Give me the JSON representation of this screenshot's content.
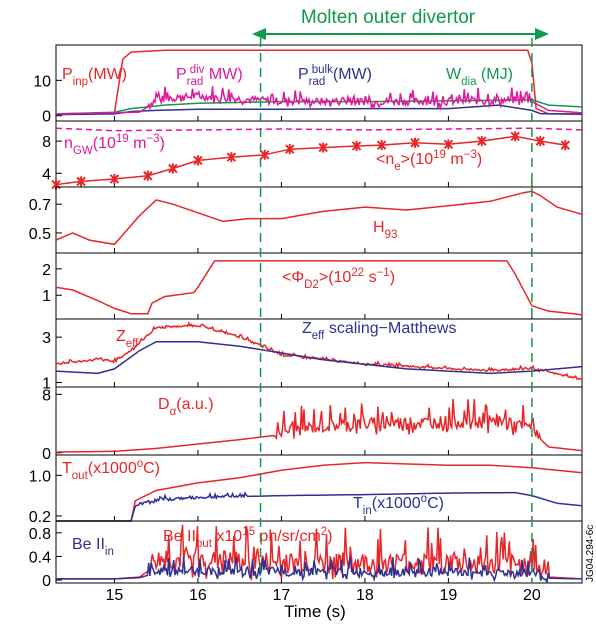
{
  "figure": {
    "banner": "Molten outer divertor",
    "xlabel": "Time (s)",
    "code": "JG04.294-6c",
    "marker_times": [
      16.75,
      20.0
    ],
    "colors": {
      "red": "#e8262a",
      "blue": "#2e3192",
      "green": "#11994c",
      "magenta": "#e0189a",
      "axis": "#000000"
    }
  },
  "chart_data": [
    {
      "type": "line",
      "xlim": [
        14.3,
        20.6
      ],
      "ylim": [
        -1.5,
        20
      ],
      "yticks": [
        "10",
        "0"
      ],
      "ytick_values": [
        10,
        0
      ],
      "xticks": [
        15,
        16,
        17,
        18,
        19,
        20
      ],
      "labels": [
        {
          "text": "P",
          "sub": "inp",
          "tail": "(MW)",
          "color": "red"
        },
        {
          "text": "P",
          "sub": "rad",
          "sup": "div",
          "tail": " MW)",
          "color": "magenta"
        },
        {
          "text": "P",
          "sub": "rad",
          "sup": "bulk",
          "tail": "(MW)",
          "color": "blue"
        },
        {
          "text": "W",
          "sub": "dia",
          "tail": " (MJ)",
          "color": "green"
        }
      ],
      "series": [
        {
          "color": "red",
          "x": [
            14.3,
            15.0,
            15.1,
            15.2,
            15.6,
            16.5,
            17.0,
            18.0,
            19.0,
            19.95,
            20.0,
            20.05,
            20.2,
            20.6
          ],
          "y": [
            0.5,
            0.8,
            16,
            18,
            18.5,
            18.5,
            18.5,
            18.5,
            18.5,
            18.5,
            15,
            2,
            0.5,
            0.5
          ]
        },
        {
          "color": "green",
          "x": [
            14.3,
            15.0,
            15.2,
            15.6,
            16.0,
            17.0,
            18.0,
            19.0,
            20.0,
            20.2,
            20.6
          ],
          "y": [
            0.5,
            1,
            2,
            3,
            3.5,
            4,
            4,
            4.2,
            4.5,
            3,
            2.5
          ]
        },
        {
          "color": "blue",
          "x": [
            14.3,
            15.0,
            15.2,
            15.5,
            16.0,
            17.0,
            18.0,
            19.0,
            19.6,
            20.0,
            20.1,
            20.6
          ],
          "y": [
            0.3,
            0.5,
            1.2,
            1.5,
            1.8,
            1.8,
            2,
            2,
            3,
            1.5,
            0.6,
            0.4
          ]
        },
        {
          "color": "magenta",
          "x": [
            14.3,
            15.3,
            15.5,
            16.0,
            17.0,
            18.0,
            19.0,
            20.0,
            20.2,
            20.6
          ],
          "y": [
            0.5,
            1,
            4,
            5,
            3.5,
            3.5,
            3.5,
            4,
            1.5,
            0.8
          ],
          "noise": 3.5,
          "noise_from": 15.4,
          "noise_to": 20.0
        }
      ]
    },
    {
      "type": "line",
      "xlim": [
        14.3,
        20.6
      ],
      "ylim": [
        2.3,
        10.5
      ],
      "yticks": [
        "8",
        "4"
      ],
      "ytick_values": [
        8,
        4
      ],
      "xticks": [
        15,
        16,
        17,
        18,
        19,
        20
      ],
      "labels": [
        {
          "text": "n",
          "sub": "GW",
          "tail": "(10",
          "sup2": "19",
          "tail2": " m",
          "sup3": "−3",
          "tail3": ")",
          "color": "magenta"
        },
        {
          "text": "<n",
          "sub": "e",
          "tail": ">(10",
          "sup2": "19",
          "tail2": " m",
          "sup3": "−3",
          "tail3": ")",
          "color": "red"
        }
      ],
      "series": [
        {
          "color": "magenta",
          "dashed": true,
          "x": [
            14.3,
            15.0,
            16.0,
            17.0,
            18.0,
            19.0,
            20.0,
            20.6
          ],
          "y": [
            9.6,
            9.3,
            9.4,
            9.5,
            9.4,
            9.5,
            9.6,
            9.4
          ]
        },
        {
          "color": "red",
          "markers": true,
          "x": [
            14.3,
            14.6,
            15.0,
            15.4,
            15.7,
            16.0,
            16.4,
            16.8,
            17.1,
            17.5,
            17.9,
            18.2,
            18.6,
            19.0,
            19.4,
            19.8,
            20.1,
            20.4
          ],
          "y": [
            2.6,
            3.0,
            3.3,
            3.7,
            4.6,
            5.6,
            6.0,
            6.3,
            7.0,
            7.2,
            7.4,
            7.5,
            7.8,
            7.6,
            8.0,
            8.6,
            8.0,
            7.5
          ]
        }
      ]
    },
    {
      "type": "line",
      "xlim": [
        14.3,
        20.6
      ],
      "ylim": [
        0.36,
        0.82
      ],
      "yticks": [
        "0.7",
        "0.5"
      ],
      "ytick_values": [
        0.7,
        0.5
      ],
      "xticks": [
        15,
        16,
        17,
        18,
        19,
        20
      ],
      "labels": [
        {
          "text": "H",
          "sub": "93",
          "color": "red"
        }
      ],
      "series": [
        {
          "color": "red",
          "x": [
            14.3,
            14.5,
            14.7,
            15.0,
            15.3,
            15.5,
            15.7,
            16.0,
            16.3,
            16.6,
            17.0,
            17.5,
            18.0,
            18.5,
            19.0,
            19.5,
            19.9,
            20.0,
            20.1,
            20.3,
            20.6
          ],
          "y": [
            0.45,
            0.5,
            0.45,
            0.42,
            0.62,
            0.73,
            0.7,
            0.64,
            0.58,
            0.6,
            0.6,
            0.65,
            0.68,
            0.66,
            0.69,
            0.72,
            0.78,
            0.79,
            0.76,
            0.68,
            0.63
          ]
        }
      ]
    },
    {
      "type": "line",
      "xlim": [
        14.3,
        20.6
      ],
      "ylim": [
        0.1,
        2.6
      ],
      "yticks": [
        "2",
        "1"
      ],
      "ytick_values": [
        2,
        1
      ],
      "xticks": [
        15,
        16,
        17,
        18,
        19,
        20
      ],
      "labels": [
        {
          "text": "<Φ",
          "sub": "D2",
          "tail": ">(10",
          "sup2": "22",
          "tail2": " s",
          "sup3": "−1",
          "tail3": ")",
          "color": "red"
        }
      ],
      "series": [
        {
          "color": "red",
          "x": [
            14.3,
            14.5,
            14.8,
            15.0,
            15.2,
            15.4,
            15.45,
            15.6,
            15.95,
            16.0,
            16.2,
            17.0,
            18.0,
            19.0,
            19.7,
            19.8,
            20.0,
            20.2,
            20.5,
            20.6
          ],
          "y": [
            1.3,
            1.2,
            0.8,
            0.5,
            0.3,
            0.3,
            0.7,
            0.95,
            1.1,
            1.3,
            2.3,
            2.3,
            2.3,
            2.3,
            2.3,
            1.8,
            0.6,
            0.4,
            0.3,
            0.25
          ]
        }
      ]
    },
    {
      "type": "line",
      "xlim": [
        14.3,
        20.6
      ],
      "ylim": [
        0.8,
        3.8
      ],
      "yticks": [
        "3",
        "1"
      ],
      "ytick_values": [
        3,
        1
      ],
      "xticks": [
        15,
        16,
        17,
        18,
        19,
        20
      ],
      "labels": [
        {
          "text": "Z",
          "sub": "eff",
          "color": "red"
        },
        {
          "text": "Z",
          "sub": "eff",
          "tail": " scaling−Matthews",
          "color": "blue"
        }
      ],
      "series": [
        {
          "color": "red",
          "noise": 0.12,
          "noise_from": 14.3,
          "noise_to": 20.6,
          "x": [
            14.3,
            14.8,
            15.0,
            15.2,
            15.5,
            16.0,
            16.5,
            17.0,
            17.5,
            18.0,
            18.5,
            19.0,
            19.5,
            20.0,
            20.5,
            20.6
          ],
          "y": [
            1.8,
            2.0,
            1.9,
            2.4,
            3.4,
            3.5,
            3.0,
            2.2,
            2.0,
            1.8,
            1.7,
            1.6,
            1.5,
            1.6,
            1.2,
            1.1
          ]
        },
        {
          "color": "blue",
          "x": [
            14.3,
            14.8,
            15.0,
            15.3,
            15.5,
            16.0,
            16.5,
            17.0,
            17.5,
            18.0,
            18.5,
            19.0,
            19.5,
            20.0,
            20.3,
            20.6
          ],
          "y": [
            1.5,
            1.4,
            1.6,
            2.4,
            2.8,
            2.8,
            2.6,
            2.3,
            2.0,
            1.8,
            1.6,
            1.5,
            1.4,
            1.5,
            1.6,
            1.7
          ]
        }
      ]
    },
    {
      "type": "line",
      "xlim": [
        14.3,
        20.6
      ],
      "ylim": [
        -0.3,
        9
      ],
      "yticks": [
        "8",
        "0"
      ],
      "ytick_values": [
        8,
        0
      ],
      "xticks": [
        15,
        16,
        17,
        18,
        19,
        20
      ],
      "labels": [
        {
          "text": "D",
          "sub": "α",
          "tail": "(a.u.)",
          "color": "red"
        }
      ],
      "series": [
        {
          "color": "red",
          "noise": 3.0,
          "noise_from": 16.9,
          "noise_to": 20.1,
          "x": [
            14.3,
            15.0,
            15.5,
            16.0,
            16.5,
            17.0,
            17.5,
            18.0,
            18.5,
            19.0,
            19.5,
            20.0,
            20.2,
            20.6
          ],
          "y": [
            0.1,
            0.2,
            0.6,
            1.2,
            1.8,
            2.5,
            3.2,
            3.5,
            3.6,
            3.8,
            3.8,
            3.0,
            0.8,
            0.3
          ]
        }
      ]
    },
    {
      "type": "line",
      "xlim": [
        14.3,
        20.6
      ],
      "ylim": [
        0.1,
        1.4
      ],
      "yticks": [
        "1.0",
        "0.2"
      ],
      "ytick_values": [
        1.0,
        0.2
      ],
      "xticks": [
        15,
        16,
        17,
        18,
        19,
        20
      ],
      "labels": [
        {
          "text": "T",
          "sub": "out",
          "tail": "(x1000",
          "sup2": "o",
          "tail2": "C)",
          "color": "red"
        },
        {
          "text": "T",
          "sub": "in",
          "tail": "(x1000",
          "sup2": "o",
          "tail2": "C)",
          "color": "blue"
        }
      ],
      "series": [
        {
          "color": "red",
          "x": [
            14.3,
            15.2,
            15.25,
            15.5,
            16.0,
            16.5,
            17.0,
            17.5,
            18.0,
            19.0,
            19.5,
            20.0,
            20.3,
            20.6
          ],
          "y": [
            0.1,
            0.1,
            0.5,
            0.7,
            0.85,
            0.95,
            1.1,
            1.2,
            1.25,
            1.2,
            1.2,
            1.15,
            1.1,
            1.05
          ]
        },
        {
          "color": "blue",
          "noise": 0.08,
          "noise_from": 15.3,
          "noise_to": 16.6,
          "x": [
            14.3,
            15.2,
            15.25,
            15.5,
            16.0,
            16.5,
            17.0,
            18.0,
            19.0,
            19.8,
            20.0,
            20.3,
            20.6
          ],
          "y": [
            0.1,
            0.1,
            0.4,
            0.5,
            0.55,
            0.58,
            0.6,
            0.62,
            0.65,
            0.66,
            0.6,
            0.45,
            0.4
          ]
        }
      ]
    },
    {
      "type": "line",
      "xlim": [
        14.3,
        20.6
      ],
      "ylim": [
        -0.05,
        1.0
      ],
      "yticks": [
        "0.8",
        "0.4",
        "0"
      ],
      "ytick_values": [
        0.8,
        0.4,
        0
      ],
      "xticks": [
        15,
        16,
        17,
        18,
        19,
        20
      ],
      "labels": [
        {
          "text": "Be II",
          "sub": "in",
          "color": "blue"
        },
        {
          "text": "Be II",
          "sub": "out",
          "tail": " x10",
          "sup2": "15",
          "tail2": " ph/sr/cm",
          "sup3": "2",
          "tail3": ")",
          "color": "red"
        }
      ],
      "series": [
        {
          "color": "red",
          "noise": 0.6,
          "noise_from": 15.4,
          "noise_to": 20.2,
          "x": [
            14.3,
            15.0,
            15.3,
            15.5,
            16.0,
            17.0,
            18.0,
            19.0,
            20.0,
            20.2,
            20.6
          ],
          "y": [
            0.02,
            0.02,
            0.05,
            0.25,
            0.25,
            0.2,
            0.2,
            0.2,
            0.15,
            0.05,
            0.02
          ]
        },
        {
          "color": "blue",
          "noise": 0.25,
          "noise_from": 15.4,
          "noise_to": 20.2,
          "x": [
            14.3,
            15.0,
            15.3,
            15.5,
            16.0,
            17.0,
            18.0,
            19.0,
            20.0,
            20.2,
            20.6
          ],
          "y": [
            0.02,
            0.02,
            0.04,
            0.12,
            0.12,
            0.1,
            0.1,
            0.1,
            0.08,
            0.03,
            0.02
          ]
        }
      ]
    }
  ]
}
